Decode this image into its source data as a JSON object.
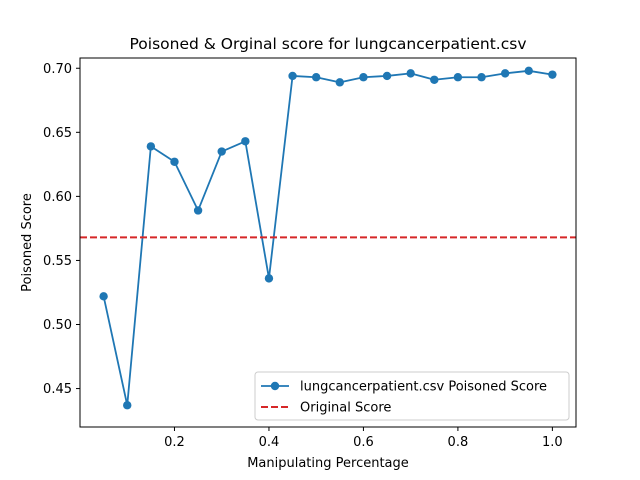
{
  "chart_data": {
    "type": "line",
    "title": "Poisoned & Orginal score for lungcancerpatient.csv",
    "xlabel": "Manipulating Percentage",
    "ylabel": "Poisoned Score",
    "xlim": [
      0.0,
      1.05
    ],
    "ylim": [
      0.42,
      0.708
    ],
    "xticks": [
      0.2,
      0.4,
      0.6,
      0.8,
      1.0
    ],
    "xtick_labels": [
      "0.2",
      "0.4",
      "0.6",
      "0.8",
      "1.0"
    ],
    "yticks": [
      0.45,
      0.5,
      0.55,
      0.6,
      0.65,
      0.7
    ],
    "ytick_labels": [
      "0.45",
      "0.50",
      "0.55",
      "0.60",
      "0.65",
      "0.70"
    ],
    "grid": false,
    "legend_position": "lower-right",
    "series": [
      {
        "name": "lungcancerpatient.csv Poisoned Score",
        "color": "#1f77b4",
        "style": "solid",
        "marker": "circle",
        "x": [
          0.05,
          0.1,
          0.15,
          0.2,
          0.25,
          0.3,
          0.35,
          0.4,
          0.45,
          0.5,
          0.55,
          0.6,
          0.65,
          0.7,
          0.75,
          0.8,
          0.85,
          0.9,
          0.95,
          1.0
        ],
        "values": [
          0.522,
          0.437,
          0.639,
          0.627,
          0.589,
          0.635,
          0.643,
          0.536,
          0.694,
          0.693,
          0.689,
          0.693,
          0.694,
          0.696,
          0.691,
          0.693,
          0.693,
          0.696,
          0.698,
          0.695
        ]
      },
      {
        "name": "Original Score",
        "color": "#d62728",
        "style": "dashed",
        "marker": "none",
        "constant": 0.568
      }
    ]
  }
}
